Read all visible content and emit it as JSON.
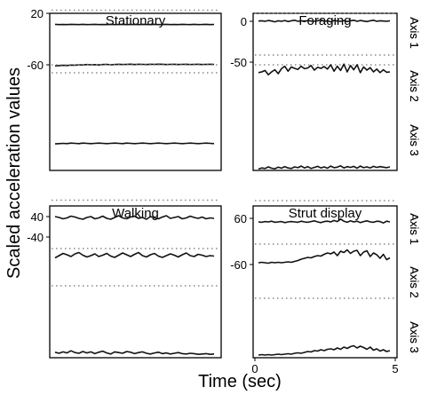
{
  "chart_data": {
    "type": "line",
    "ylabel": "Scaled acceleration values",
    "xlabel": "Time (sec)",
    "x_ticks": [
      "0",
      "5"
    ],
    "x_range": [
      0,
      5
    ],
    "axis_labels": [
      "Axis 1",
      "Axis 2",
      "Axis 3"
    ],
    "panels": [
      {
        "title": "Stationary",
        "y_ticks": [
          "20",
          "-60"
        ],
        "traces": [
          {
            "axis": "Axis 1",
            "ref_level": 0.55,
            "values": [
              0.2,
              0.1,
              0.15,
              0.1,
              0.2,
              0.15,
              0.1,
              0.2,
              0.1,
              0.15,
              0.2,
              0.1,
              0.15,
              0.1,
              0.2,
              0.1,
              0.15,
              0.2,
              0.1,
              0.15,
              0.2,
              0.1,
              0.2,
              0.15,
              0.1,
              0.2,
              0.1,
              0.15,
              0.2,
              0.1,
              0.15,
              0.1,
              0.2,
              0.15,
              0.1,
              0.2,
              0.1,
              0.15,
              0.2,
              0.1,
              0.15
            ]
          },
          {
            "axis": "Axis 2",
            "ref_level": -0.2,
            "values": [
              0.6,
              0.7,
              0.8,
              0.75,
              0.9,
              0.85,
              1.0,
              0.95,
              1.1,
              1.0,
              1.05,
              0.95,
              1.1,
              1.15,
              1.0,
              1.1,
              1.2,
              1.1,
              1.15,
              1.25,
              1.1,
              1.2,
              1.15,
              1.1,
              1.2,
              1.15,
              1.25,
              1.2,
              1.1,
              1.15,
              1.2,
              1.1,
              1.15,
              1.2,
              1.1,
              1.15,
              1.2,
              1.1,
              1.15,
              1.2,
              1.15
            ]
          },
          {
            "axis": "Axis 3",
            "ref_level": 3.0,
            "values": [
              0.3,
              0.4,
              0.5,
              0.4,
              0.6,
              0.5,
              0.4,
              0.6,
              0.5,
              0.4,
              0.5,
              0.6,
              0.5,
              0.4,
              0.5,
              0.6,
              0.5,
              0.4,
              0.6,
              0.5,
              0.4,
              0.5,
              0.6,
              0.5,
              0.4,
              0.5,
              0.6,
              0.5,
              0.4,
              0.5,
              0.6,
              0.5,
              0.4,
              0.5,
              0.6,
              0.5,
              0.4,
              0.5,
              0.6,
              0.5,
              0.4
            ]
          }
        ]
      },
      {
        "title": "Foraging",
        "y_ticks": [
          "0",
          "-50"
        ],
        "traces": [
          {
            "axis": "Axis 1",
            "ref_level": 0.3,
            "values": [
              0.1,
              0.2,
              0.0,
              0.3,
              0.1,
              -0.2,
              0.2,
              0.0,
              0.3,
              -0.1,
              0.2,
              0.4,
              0.0,
              0.2,
              -0.1,
              0.3,
              0.1,
              0.0,
              0.2,
              0.5,
              0.0,
              0.2,
              -0.2,
              0.3,
              0.1,
              0.0,
              0.3,
              -0.1,
              0.2,
              0.4,
              0.0,
              0.3,
              0.1,
              -0.1,
              0.2,
              0.4,
              0.0,
              0.2,
              0.1,
              0.0,
              0.2
            ]
          },
          {
            "axis": "Axis 2",
            "ref_level": 0.3,
            "values": [
              0.8,
              1.0,
              1.4,
              0.2,
              1.0,
              1.6,
              0.5,
              1.9,
              2.6,
              1.2,
              2.4,
              2.0,
              1.7,
              2.6,
              1.9,
              2.1,
              2.8,
              1.5,
              2.3,
              2.0,
              2.5,
              1.8,
              3.0,
              1.2,
              2.6,
              1.4,
              3.2,
              1.0,
              2.8,
              1.6,
              3.0,
              0.8,
              2.4,
              1.5,
              2.2,
              1.0,
              1.8,
              0.8,
              1.6,
              0.9,
              1.0
            ]
          },
          {
            "axis": "Axis 3",
            "ref_level": 4.3,
            "values": [
              0.2,
              0.6,
              0.4,
              1.0,
              0.5,
              0.3,
              0.9,
              0.5,
              1.1,
              0.6,
              0.4,
              1.0,
              0.7,
              1.3,
              0.6,
              1.1,
              0.4,
              0.8,
              1.2,
              0.6,
              1.0,
              0.5,
              1.3,
              0.7,
              0.9,
              1.4,
              0.6,
              1.1,
              0.8,
              1.2,
              0.5,
              1.3,
              0.7,
              1.0,
              0.6,
              1.2,
              0.8,
              1.1,
              0.9,
              0.7,
              1.0
            ]
          }
        ]
      },
      {
        "title": "Walking",
        "y_ticks": [
          "40",
          "-40"
        ],
        "traces": [
          {
            "axis": "Axis 1",
            "ref_level": 0.45,
            "values": [
              0.8,
              0.6,
              0.3,
              0.5,
              0.9,
              0.7,
              0.4,
              0.2,
              0.6,
              0.8,
              0.3,
              0.5,
              0.9,
              0.4,
              0.2,
              0.6,
              1.0,
              0.5,
              0.3,
              0.7,
              0.9,
              0.4,
              0.6,
              0.2,
              0.8,
              0.5,
              0.3,
              0.7,
              1.0,
              0.4,
              0.6,
              0.8,
              0.3,
              0.5,
              0.9,
              0.6,
              0.4,
              0.7,
              0.3,
              0.5,
              0.4
            ]
          },
          {
            "axis": "Axis 2",
            "ref_level": -0.6,
            "values": [
              0.3,
              0.8,
              1.3,
              1.0,
              0.6,
              1.2,
              1.5,
              0.9,
              0.5,
              0.8,
              1.2,
              0.6,
              0.9,
              1.3,
              0.7,
              0.4,
              0.9,
              1.4,
              1.0,
              0.6,
              1.1,
              1.5,
              0.8,
              0.5,
              1.0,
              1.3,
              0.7,
              0.4,
              0.8,
              1.2,
              0.9,
              0.5,
              1.0,
              1.4,
              0.8,
              0.6,
              1.1,
              0.9,
              0.6,
              0.8,
              0.7
            ]
          },
          {
            "axis": "Axis 3",
            "ref_level": 3.0,
            "values": [
              0.8,
              0.5,
              0.9,
              0.6,
              1.2,
              0.7,
              0.5,
              1.0,
              0.6,
              0.9,
              0.4,
              0.8,
              1.1,
              0.6,
              0.3,
              0.9,
              0.7,
              0.5,
              1.0,
              0.8,
              0.4,
              0.7,
              0.9,
              0.5,
              0.3,
              0.6,
              0.8,
              0.4,
              0.6,
              0.3,
              0.5,
              0.7,
              0.4,
              0.3,
              0.5,
              0.4,
              0.2,
              0.3,
              0.4,
              0.2,
              0.3
            ]
          }
        ]
      },
      {
        "title": "Strut display",
        "y_ticks": [
          "60",
          "-60"
        ],
        "traces": [
          {
            "axis": "Axis 1",
            "ref_level": 0.6,
            "values": [
              0.0,
              -0.1,
              0.1,
              0.0,
              0.2,
              -0.1,
              0.0,
              0.1,
              -0.2,
              0.0,
              0.1,
              0.0,
              -0.1,
              0.2,
              0.0,
              -0.1,
              0.1,
              0.3,
              0.0,
              -0.2,
              0.1,
              0.2,
              0.0,
              0.4,
              0.1,
              0.8,
              0.2,
              -0.1,
              0.3,
              0.0,
              0.2,
              -0.2,
              0.1,
              0.3,
              0.0,
              -0.1,
              0.2,
              0.1,
              -0.3,
              0.2,
              0.0
            ]
          },
          {
            "axis": "Axis 2",
            "ref_level": -0.8,
            "values": [
              0.0,
              0.1,
              0.0,
              -0.1,
              0.1,
              0.0,
              0.1,
              0.0,
              0.1,
              0.2,
              0.1,
              0.3,
              0.5,
              0.8,
              1.0,
              1.2,
              1.1,
              1.4,
              1.6,
              1.5,
              1.9,
              2.2,
              2.0,
              2.4,
              1.6,
              2.6,
              2.3,
              2.9,
              2.1,
              2.6,
              2.8,
              1.6,
              2.4,
              2.7,
              1.4,
              2.2,
              1.8,
              1.0,
              1.9,
              0.7,
              1.1
            ]
          },
          {
            "axis": "Axis 3",
            "ref_level": 2.5,
            "values": [
              0.0,
              0.1,
              0.0,
              0.1,
              0.0,
              0.1,
              0.2,
              0.1,
              0.2,
              0.3,
              0.2,
              0.4,
              0.5,
              0.4,
              0.6,
              0.8,
              0.7,
              1.0,
              0.9,
              1.2,
              1.0,
              1.3,
              1.4,
              1.2,
              1.6,
              1.3,
              1.8,
              1.5,
              1.9,
              2.1,
              1.6,
              2.0,
              1.7,
              1.3,
              1.8,
              1.1,
              1.4,
              0.9,
              1.2,
              0.8,
              1.0
            ]
          }
        ]
      }
    ]
  }
}
